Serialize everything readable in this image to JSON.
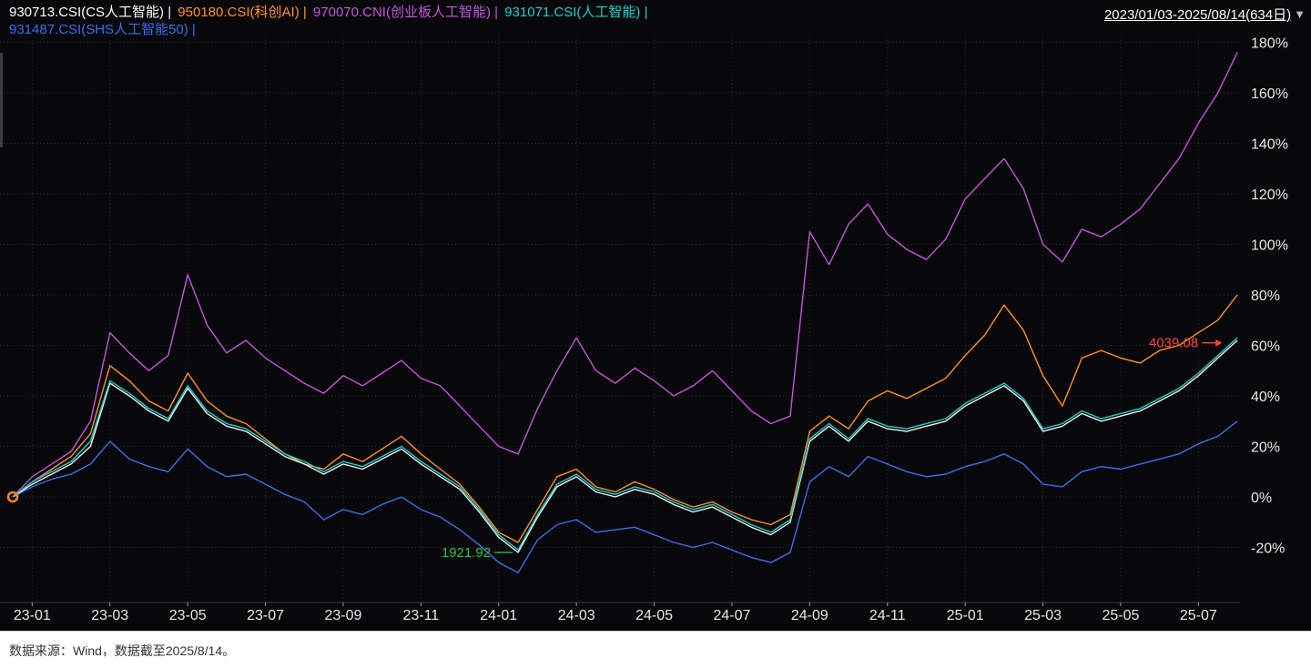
{
  "header": {
    "legend": [
      {
        "code": "930713",
        "label": "930713.CSI(CS人工智能)",
        "sep": " | ",
        "color": "#ffffff"
      },
      {
        "code": "950180",
        "label": "950180.CSI(科创AI)",
        "sep": " | ",
        "color": "#ff9228"
      },
      {
        "code": "970070",
        "label": "970070.CNI(创业板人工智能)",
        "sep": " | ",
        "color": "#c355dd"
      },
      {
        "code": "931071",
        "label": "931071.CSI(人工智能)",
        "sep": " | ",
        "color": "#1ed0d0"
      },
      {
        "code": "931487",
        "label": "931487.CSI(SHS人工智能50)",
        "sep": " | ",
        "color": "#3c6ef0"
      }
    ],
    "date_range": "2023/01/03-2025/08/14(634日)",
    "dropdown_icon": "▼"
  },
  "footer": {
    "source": "数据来源：Wind，数据截至2025/8/14。"
  },
  "chart_data": {
    "type": "line",
    "x_start": "2023-01",
    "x_step_months": 0.5,
    "x_tick_labels": [
      "23-01",
      "23-03",
      "23-05",
      "23-07",
      "23-09",
      "23-11",
      "24-01",
      "24-03",
      "24-05",
      "24-07",
      "24-09",
      "24-11",
      "25-01",
      "25-03",
      "25-05",
      "25-07"
    ],
    "y_ticks": [
      180,
      160,
      140,
      120,
      100,
      80,
      60,
      40,
      20,
      0,
      -20
    ],
    "y_unit": "%",
    "ylim": [
      -40,
      183
    ],
    "grid": true,
    "legend_position": "top-left",
    "series": [
      {
        "name": "930713.CSI CS人工智能",
        "color": "#f0f0f0",
        "values": [
          0,
          5,
          9,
          13,
          20,
          45,
          40,
          34,
          30,
          43,
          33,
          28,
          26,
          21,
          16,
          13,
          9,
          13,
          11,
          15,
          19,
          13,
          8,
          3,
          -6,
          -16,
          -22,
          -8,
          4,
          8,
          2,
          0,
          3,
          1,
          -3,
          -6,
          -4,
          -8,
          -12,
          -15,
          -10,
          22,
          28,
          22,
          30,
          27,
          26,
          28,
          30,
          36,
          40,
          44,
          38,
          26,
          28,
          33,
          30,
          32,
          34,
          38,
          42,
          48,
          55,
          62
        ]
      },
      {
        "name": "950180.CSI 科创AI",
        "color": "#ff9228",
        "values": [
          0,
          6,
          11,
          16,
          25,
          52,
          46,
          38,
          34,
          49,
          38,
          32,
          29,
          23,
          17,
          13,
          11,
          17,
          14,
          19,
          24,
          17,
          11,
          5,
          -4,
          -14,
          -18,
          -5,
          8,
          11,
          4,
          2,
          6,
          3,
          -1,
          -4,
          -2,
          -6,
          -9,
          -11,
          -7,
          26,
          32,
          27,
          38,
          42,
          39,
          43,
          47,
          56,
          64,
          76,
          66,
          48,
          36,
          55,
          58,
          55,
          53,
          58,
          60,
          65,
          70,
          80
        ]
      },
      {
        "name": "970070.CNI 创业板人工智能",
        "color": "#c355dd",
        "values": [
          0,
          8,
          13,
          18,
          30,
          65,
          57,
          50,
          56,
          88,
          68,
          57,
          62,
          55,
          50,
          45,
          41,
          48,
          44,
          49,
          54,
          47,
          44,
          36,
          28,
          20,
          17,
          35,
          50,
          63,
          50,
          45,
          51,
          46,
          40,
          44,
          50,
          42,
          34,
          29,
          32,
          105,
          92,
          108,
          116,
          104,
          98,
          94,
          102,
          118,
          126,
          134,
          122,
          100,
          93,
          106,
          103,
          108,
          114,
          124,
          134,
          148,
          160,
          176
        ]
      },
      {
        "name": "931071.CSI 人工智能",
        "color": "#1ed0d0",
        "values": [
          0,
          6,
          10,
          14,
          22,
          46,
          41,
          35,
          31,
          44,
          34,
          29,
          27,
          22,
          17,
          14,
          10,
          14,
          12,
          16,
          20,
          14,
          9,
          4,
          -5,
          -15,
          -21,
          -7,
          5,
          9,
          3,
          1,
          4,
          2,
          -2,
          -5,
          -3,
          -7,
          -11,
          -14,
          -9,
          23,
          29,
          23,
          31,
          28,
          27,
          29,
          31,
          37,
          41,
          45,
          39,
          27,
          29,
          34,
          31,
          33,
          35,
          39,
          43,
          49,
          56,
          63
        ]
      },
      {
        "name": "931487.CSI SHS人工智能50",
        "color": "#3c6ef0",
        "values": [
          0,
          4,
          7,
          9,
          13,
          22,
          15,
          12,
          10,
          19,
          12,
          8,
          9,
          5,
          1,
          -2,
          -9,
          -5,
          -7,
          -3,
          0,
          -5,
          -8,
          -13,
          -19,
          -26,
          -30,
          -17,
          -11,
          -9,
          -14,
          -13,
          -12,
          -15,
          -18,
          -20,
          -18,
          -21,
          -24,
          -26,
          -22,
          6,
          12,
          8,
          16,
          13,
          10,
          8,
          9,
          12,
          14,
          17,
          13,
          5,
          4,
          10,
          12,
          11,
          13,
          15,
          17,
          21,
          24,
          30
        ]
      }
    ],
    "annotations": [
      {
        "text": "1921.92",
        "color": "#2fc04f",
        "x_month": 13.0,
        "value": -22,
        "arrow": false
      },
      {
        "text": "4039.08",
        "color": "#ff4444",
        "x_month": 31.2,
        "value": 61,
        "arrow": true
      }
    ],
    "start_marker": {
      "x_month": 0,
      "value": 0,
      "color": "#ff7e26"
    }
  }
}
